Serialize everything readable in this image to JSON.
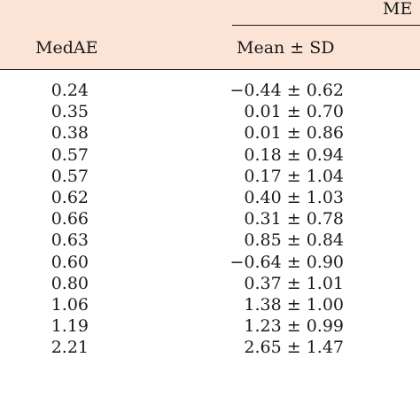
{
  "table": {
    "group_header": "ME",
    "columns": {
      "medae": "MedAE",
      "mean_sd": "Mean ± SD"
    },
    "rows": [
      {
        "medae": "0.24",
        "mean_sd": "−0.44 ± 0.62"
      },
      {
        "medae": "0.35",
        "mean_sd": "0.01 ± 0.70"
      },
      {
        "medae": "0.38",
        "mean_sd": "0.01 ± 0.86"
      },
      {
        "medae": "0.57",
        "mean_sd": "0.18 ± 0.94"
      },
      {
        "medae": "0.57",
        "mean_sd": "0.17 ± 1.04"
      },
      {
        "medae": "0.62",
        "mean_sd": "0.40 ± 1.03"
      },
      {
        "medae": "0.66",
        "mean_sd": "0.31 ± 0.78"
      },
      {
        "medae": "0.63",
        "mean_sd": "0.85 ± 0.84"
      },
      {
        "medae": "0.60",
        "mean_sd": "−0.64 ± 0.90"
      },
      {
        "medae": "0.80",
        "mean_sd": "0.37 ± 1.01"
      },
      {
        "medae": "1.06",
        "mean_sd": "1.38 ± 1.00"
      },
      {
        "medae": "1.19",
        "mean_sd": "1.23 ± 0.99"
      },
      {
        "medae": "2.21",
        "mean_sd": "2.65 ± 1.47"
      }
    ]
  },
  "colors": {
    "header_background": "#fbe3d6",
    "text": "#1a1a1a",
    "rule": "#1a1a1a"
  }
}
